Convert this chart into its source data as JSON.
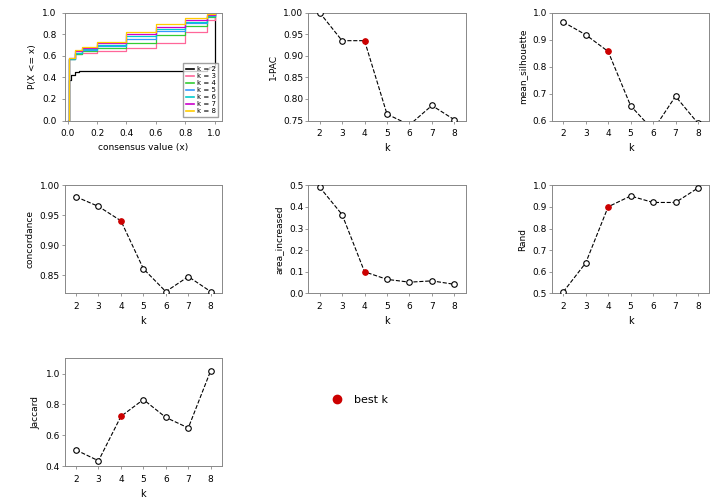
{
  "ecdf_lines": {
    "k2": {
      "color": "#000000",
      "label": "k = 2",
      "x": [
        0.0,
        0.01,
        0.02,
        0.05,
        0.08,
        0.95,
        0.96,
        1.0
      ],
      "y": [
        0.0,
        0.38,
        0.42,
        0.45,
        0.46,
        0.48,
        0.5,
        1.0
      ]
    },
    "k3": {
      "color": "#ff6699",
      "label": "k = 3",
      "x": [
        0.0,
        0.01,
        0.05,
        0.1,
        0.2,
        0.4,
        0.6,
        0.8,
        0.95,
        1.0
      ],
      "y": [
        0.0,
        0.57,
        0.62,
        0.63,
        0.64,
        0.67,
        0.72,
        0.82,
        0.93,
        1.0
      ]
    },
    "k4": {
      "color": "#33cc33",
      "label": "k = 4",
      "x": [
        0.0,
        0.01,
        0.05,
        0.1,
        0.2,
        0.4,
        0.6,
        0.8,
        0.95,
        1.0
      ],
      "y": [
        0.0,
        0.57,
        0.62,
        0.64,
        0.67,
        0.72,
        0.79,
        0.88,
        0.96,
        1.0
      ]
    },
    "k5": {
      "color": "#3399ff",
      "label": "k = 5",
      "x": [
        0.0,
        0.01,
        0.05,
        0.1,
        0.2,
        0.4,
        0.6,
        0.8,
        0.95,
        1.0
      ],
      "y": [
        0.0,
        0.57,
        0.63,
        0.65,
        0.69,
        0.76,
        0.83,
        0.9,
        0.97,
        1.0
      ]
    },
    "k6": {
      "color": "#00cccc",
      "label": "k = 6",
      "x": [
        0.0,
        0.01,
        0.05,
        0.1,
        0.2,
        0.4,
        0.6,
        0.8,
        0.95,
        1.0
      ],
      "y": [
        0.0,
        0.57,
        0.63,
        0.66,
        0.7,
        0.78,
        0.85,
        0.91,
        0.97,
        1.0
      ]
    },
    "k7": {
      "color": "#cc00cc",
      "label": "k = 7",
      "x": [
        0.0,
        0.01,
        0.05,
        0.1,
        0.2,
        0.4,
        0.6,
        0.8,
        0.95,
        1.0
      ],
      "y": [
        0.0,
        0.58,
        0.64,
        0.67,
        0.72,
        0.8,
        0.87,
        0.93,
        0.98,
        1.0
      ]
    },
    "k8": {
      "color": "#ffcc00",
      "label": "k = 8",
      "x": [
        0.0,
        0.01,
        0.05,
        0.1,
        0.2,
        0.4,
        0.6,
        0.8,
        0.95,
        1.0
      ],
      "y": [
        0.0,
        0.58,
        0.65,
        0.68,
        0.73,
        0.82,
        0.89,
        0.95,
        0.99,
        1.0
      ]
    }
  },
  "pac": {
    "k": [
      2,
      3,
      4,
      5,
      6,
      7,
      8
    ],
    "y": [
      1.0,
      0.935,
      0.935,
      0.765,
      0.74,
      0.785,
      0.752
    ],
    "ylim": [
      0.75,
      1.0
    ],
    "yticks": [
      0.75,
      0.8,
      0.85,
      0.9,
      0.95,
      1.0
    ],
    "ylabel": "1-PAC"
  },
  "mean_sil": {
    "k": [
      2,
      3,
      4,
      5,
      6,
      7,
      8
    ],
    "y": [
      0.965,
      0.918,
      0.856,
      0.655,
      0.565,
      0.69,
      0.59
    ],
    "ylim": [
      0.6,
      1.0
    ],
    "yticks": [
      0.6,
      0.7,
      0.8,
      0.9,
      1.0
    ],
    "ylabel": "mean_silhouette"
  },
  "concordance": {
    "k": [
      2,
      3,
      4,
      5,
      6,
      7,
      8
    ],
    "y": [
      0.981,
      0.965,
      0.941,
      0.861,
      0.823,
      0.848,
      0.823
    ],
    "ylim": [
      0.82,
      1.0
    ],
    "yticks": [
      0.85,
      0.9,
      0.95,
      1.0
    ],
    "ylabel": "concordance"
  },
  "area_increased": {
    "k": [
      2,
      3,
      4,
      5,
      6,
      7,
      8
    ],
    "y": [
      0.492,
      0.365,
      0.1,
      0.065,
      0.052,
      0.058,
      0.042
    ],
    "ylim": [
      0.0,
      0.5
    ],
    "yticks": [
      0.0,
      0.1,
      0.2,
      0.3,
      0.4,
      0.5
    ],
    "ylabel": "area_increased"
  },
  "rand": {
    "k": [
      2,
      3,
      4,
      5,
      6,
      7,
      8
    ],
    "y": [
      0.507,
      0.641,
      0.901,
      0.951,
      0.921,
      0.921,
      0.988
    ],
    "ylim": [
      0.5,
      1.0
    ],
    "yticks": [
      0.5,
      0.6,
      0.7,
      0.8,
      0.9,
      1.0
    ],
    "ylabel": "Rand"
  },
  "jaccard": {
    "k": [
      2,
      3,
      4,
      5,
      6,
      7,
      8
    ],
    "y": [
      0.505,
      0.435,
      0.723,
      0.832,
      0.716,
      0.648,
      1.02
    ],
    "ylim": [
      0.4,
      1.1
    ],
    "yticks": [
      0.4,
      0.6,
      0.8,
      1.0
    ],
    "ylabel": "Jaccard"
  },
  "best_k": 4,
  "best_k_color": "#cc0000",
  "colors_order": [
    "k2",
    "k3",
    "k4",
    "k5",
    "k6",
    "k7",
    "k8"
  ]
}
